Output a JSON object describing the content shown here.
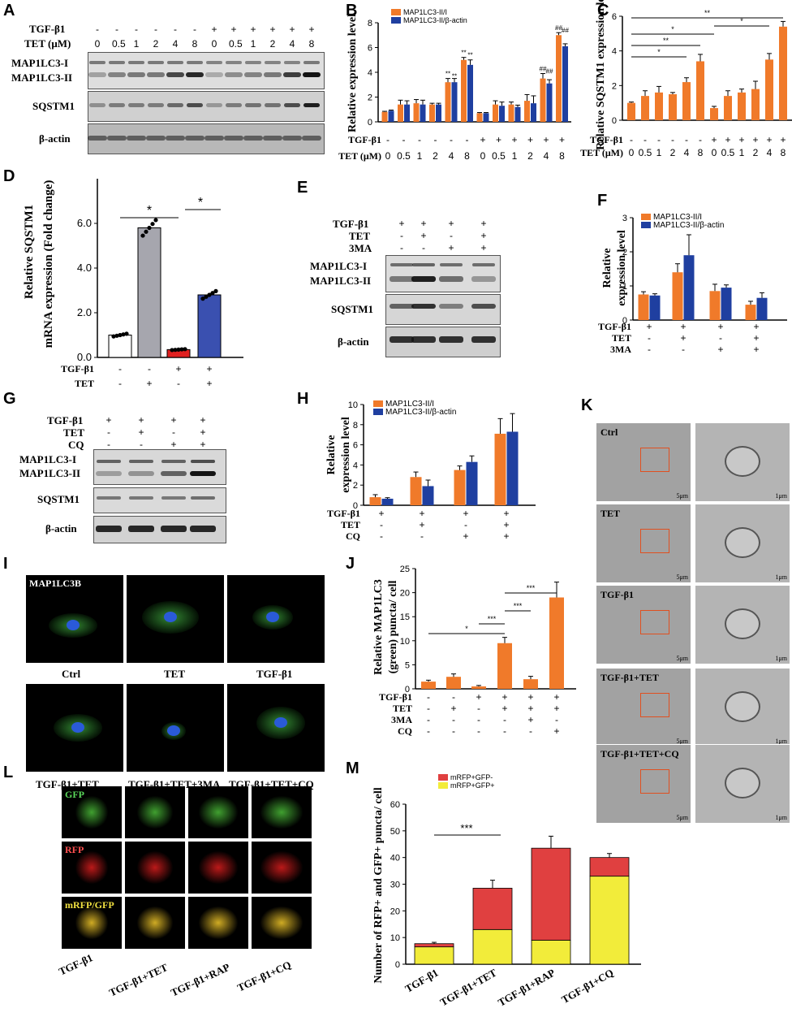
{
  "panels": {
    "A": {
      "letter": "A",
      "treat_rows": [
        "TGF-β1",
        "TET (μM)"
      ],
      "tgf": [
        "-",
        "-",
        "-",
        "-",
        "-",
        "-",
        "+",
        "+",
        "+",
        "+",
        "+",
        "+"
      ],
      "tet": [
        "0",
        "0.5",
        "1",
        "2",
        "4",
        "8",
        "0",
        "0.5",
        "1",
        "2",
        "4",
        "8"
      ],
      "blots": [
        "MAP1LC3-I",
        "MAP1LC3-II",
        "SQSTM1",
        "β-actin"
      ]
    },
    "B": {
      "letter": "B",
      "treat_rows": [
        "TGF-β1",
        "TET (μM)"
      ],
      "tgf": [
        "-",
        "-",
        "-",
        "-",
        "-",
        "-",
        "+",
        "+",
        "+",
        "+",
        "+",
        "+"
      ],
      "tet": [
        "0",
        "0.5",
        "1",
        "2",
        "4",
        "8",
        "0",
        "0.5",
        "1",
        "2",
        "4",
        "8"
      ]
    },
    "C": {
      "letter": "C",
      "treat_rows": [
        "TGF-β1",
        "TET (μM)"
      ],
      "tgf": [
        "-",
        "-",
        "-",
        "-",
        "-",
        "-",
        "+",
        "+",
        "+",
        "+",
        "+",
        "+"
      ],
      "tet": [
        "0",
        "0.5",
        "1",
        "2",
        "4",
        "8",
        "0",
        "0.5",
        "1",
        "2",
        "4",
        "8"
      ]
    },
    "D": {
      "letter": "D",
      "treat_rows": [
        "TGF-β1",
        "TET"
      ],
      "tgf": [
        "-",
        "-",
        "+",
        "+"
      ],
      "tet": [
        "-",
        "+",
        "-",
        "+"
      ]
    },
    "E": {
      "letter": "E",
      "treat_rows": [
        "TGF-β1",
        "TET",
        "3MA"
      ],
      "tgf": [
        "+",
        "+",
        "+",
        "+"
      ],
      "tet": [
        "-",
        "+",
        "-",
        "+"
      ],
      "ma": [
        "-",
        "-",
        "+",
        "+"
      ],
      "blots": [
        "MAP1LC3-I",
        "MAP1LC3-II",
        "SQSTM1",
        "β-actin"
      ]
    },
    "F": {
      "letter": "F",
      "treat_rows": [
        "TGF-β1",
        "TET",
        "3MA"
      ],
      "tgf": [
        "+",
        "+",
        "+",
        "+"
      ],
      "tet": [
        "-",
        "+",
        "-",
        "+"
      ],
      "ma": [
        "-",
        "-",
        "+",
        "+"
      ]
    },
    "G": {
      "letter": "G",
      "treat_rows": [
        "TGF-β1",
        "TET",
        "CQ"
      ],
      "tgf": [
        "+",
        "+",
        "+",
        "+"
      ],
      "tet": [
        "-",
        "+",
        "-",
        "+"
      ],
      "cq": [
        "-",
        "-",
        "+",
        "+"
      ],
      "blots": [
        "MAP1LC3-I",
        "MAP1LC3-II",
        "SQSTM1",
        "β-actin"
      ]
    },
    "H": {
      "letter": "H",
      "treat_rows": [
        "TGF-β1",
        "TET",
        "CQ"
      ],
      "tgf": [
        "+",
        "+",
        "+",
        "+"
      ],
      "tet": [
        "-",
        "+",
        "-",
        "+"
      ],
      "cq": [
        "-",
        "-",
        "+",
        "+"
      ]
    },
    "I": {
      "letter": "I",
      "stain": "MAP1LC3B",
      "labels": [
        "Ctrl",
        "TET",
        "TGF-β1",
        "TGF-β1+TET",
        "TGF-β1+TET+3MA",
        "TGF-β1+TET+CQ"
      ]
    },
    "J": {
      "letter": "J",
      "treat_rows": [
        "TGF-β1",
        "TET",
        "3MA",
        "CQ"
      ],
      "tgf": [
        "-",
        "-",
        "+",
        "+",
        "+",
        "+"
      ],
      "tet": [
        "-",
        "+",
        "-",
        "+",
        "+",
        "+"
      ],
      "ma": [
        "-",
        "-",
        "-",
        "-",
        "+",
        "-"
      ],
      "cq": [
        "-",
        "-",
        "-",
        "-",
        "-",
        "+"
      ]
    },
    "K": {
      "letter": "K",
      "labels": [
        "Ctrl",
        "TET",
        "TGF-β1",
        "TGF-β1+TET",
        "TGF-β1+TET+CQ"
      ],
      "scale_left": "5μm",
      "scale_right": "1μm"
    },
    "L": {
      "letter": "L",
      "rows": [
        "GFP",
        "RFP",
        "mRFP/GFP"
      ],
      "labels": [
        "TGF-β1",
        "TGF-β1+TET",
        "TGF-β1+RAP",
        "TGF-β1+CQ"
      ]
    },
    "M": {
      "letter": "M"
    }
  },
  "chart_data": [
    {
      "id": "B",
      "type": "bar",
      "ylabel": "Relative expression level",
      "ylim": [
        0,
        8
      ],
      "yticks": [
        0,
        2,
        4,
        6,
        8
      ],
      "series": [
        {
          "name": "MAP1LC3-II/I",
          "color": "#f07a2a",
          "values": [
            0.8,
            1.4,
            1.5,
            1.4,
            3.2,
            5.0,
            0.7,
            1.4,
            1.4,
            1.7,
            3.5,
            7.0
          ],
          "errors": [
            0.05,
            0.35,
            0.3,
            0.1,
            0.3,
            0.2,
            0.05,
            0.3,
            0.2,
            0.5,
            0.4,
            0.2
          ]
        },
        {
          "name": "MAP1LC3-II/β-actin",
          "color": "#1f3fa0",
          "values": [
            0.9,
            1.4,
            1.4,
            1.4,
            3.2,
            4.6,
            0.7,
            1.3,
            1.2,
            1.5,
            3.1,
            6.1
          ],
          "errors": [
            0.05,
            0.3,
            0.35,
            0.1,
            0.3,
            0.4,
            0.05,
            0.3,
            0.15,
            0.6,
            0.3,
            0.2
          ]
        }
      ],
      "annotations": [
        "**",
        "**",
        "**",
        "**",
        "##",
        "##",
        "##",
        "##"
      ]
    },
    {
      "id": "C",
      "type": "bar",
      "ylabel": "Relative SQSTM1 expression level",
      "ylim": [
        0,
        6
      ],
      "yticks": [
        0,
        2,
        4,
        6
      ],
      "series": [
        {
          "name": "SQSTM1",
          "color": "#f07a2a",
          "values": [
            1.0,
            1.4,
            1.6,
            1.5,
            2.2,
            3.4,
            0.7,
            1.4,
            1.6,
            1.8,
            3.5,
            5.4
          ],
          "errors": [
            0.05,
            0.3,
            0.35,
            0.1,
            0.25,
            0.4,
            0.1,
            0.3,
            0.2,
            0.45,
            0.35,
            0.3
          ]
        }
      ],
      "annotations": [
        "*",
        "**",
        "*",
        "**",
        "*"
      ]
    },
    {
      "id": "D",
      "type": "bar",
      "ylabel": "Relative SQSTM1 mRNA expression (Fold change)",
      "ylim": [
        0,
        8
      ],
      "yticks": [
        "0.0",
        "2.0",
        "4.0",
        "6.0"
      ],
      "categories": [
        "1",
        "2",
        "3",
        "4"
      ],
      "values": [
        1.0,
        5.8,
        0.35,
        2.8
      ],
      "colors": [
        "#ffffff",
        "#a6a6ae",
        "#e02020",
        "#3a50b0"
      ],
      "annotations": [
        "*",
        "*"
      ]
    },
    {
      "id": "F",
      "type": "bar",
      "ylabel": "Relative expression level",
      "ylim": [
        0,
        3
      ],
      "yticks": [
        0,
        1,
        2,
        3
      ],
      "series": [
        {
          "name": "MAP1LC3-II/I",
          "color": "#f07a2a",
          "values": [
            0.75,
            1.4,
            0.85,
            0.45
          ],
          "errors": [
            0.08,
            0.25,
            0.2,
            0.1
          ]
        },
        {
          "name": "MAP1LC3-II/β-actin",
          "color": "#1f3fa0",
          "values": [
            0.72,
            1.9,
            0.95,
            0.65
          ],
          "errors": [
            0.05,
            0.6,
            0.08,
            0.15
          ]
        }
      ],
      "annotations": [
        "*",
        "**",
        "**",
        "**"
      ]
    },
    {
      "id": "H",
      "type": "bar",
      "ylabel": "Relative expression level",
      "ylim": [
        0,
        10
      ],
      "yticks": [
        0,
        2,
        4,
        6,
        8,
        10
      ],
      "series": [
        {
          "name": "MAP1LC3-II/I",
          "color": "#f07a2a",
          "values": [
            0.8,
            2.8,
            3.5,
            7.1
          ],
          "errors": [
            0.25,
            0.5,
            0.4,
            1.5
          ]
        },
        {
          "name": "MAP1LC3-II/β-actin",
          "color": "#1f3fa0",
          "values": [
            0.65,
            1.9,
            4.3,
            7.3
          ],
          "errors": [
            0.1,
            0.6,
            0.6,
            1.8
          ]
        }
      ],
      "annotations": [
        "*",
        "*",
        "**",
        "**"
      ]
    },
    {
      "id": "J",
      "type": "bar",
      "ylabel": "Relative MAP1LC3 (green) puncta/ cell",
      "ylim": [
        0,
        25
      ],
      "yticks": [
        0,
        5,
        10,
        15,
        20,
        25
      ],
      "categories": [
        "1",
        "2",
        "3",
        "4",
        "5",
        "6"
      ],
      "values": [
        1.5,
        2.5,
        0.5,
        9.5,
        2.0,
        19.0
      ],
      "errors": [
        0.3,
        0.6,
        0.2,
        1.2,
        0.6,
        3.2
      ],
      "color": "#f07a2a",
      "annotations": [
        "*",
        "***",
        "***",
        "***"
      ]
    },
    {
      "id": "M",
      "type": "bar",
      "ylabel": "Number of RFP+ and GFP+ puncta/ cell",
      "ylim": [
        0,
        60
      ],
      "yticks": [
        0,
        10,
        20,
        30,
        40,
        50,
        60
      ],
      "categories": [
        "TGF-β1",
        "TGF-β1+TET",
        "TGF-β1+RAP",
        "TGF-β1+CQ"
      ],
      "series": [
        {
          "name": "mRFP+GFP+",
          "color": "#f2ec3a",
          "values": [
            6.5,
            13,
            9,
            33
          ],
          "errors": [
            0.5,
            1.5,
            1.2,
            1.5
          ]
        },
        {
          "name": "mRFP+GFP-",
          "color": "#e04040",
          "values": [
            1.2,
            15.5,
            34.5,
            7
          ],
          "errors": [
            0.5,
            3,
            4.5,
            1.5
          ]
        }
      ],
      "annotations": [
        "***"
      ]
    }
  ]
}
